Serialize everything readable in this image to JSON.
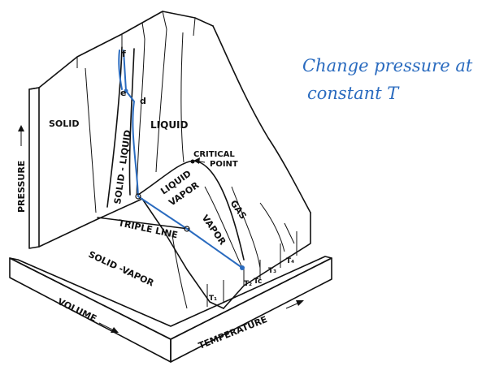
{
  "note": {
    "line1": "Change pressure at",
    "line2": "constant T"
  },
  "regions": {
    "solid": "SOLID",
    "liquid": "LIQUID",
    "solid_liquid": "SOLID - LIQUID",
    "liquid_vapor_1": "LIQUID",
    "liquid_vapor_2": "VAPOR",
    "vapor": "VAPOR",
    "gas": "GAS",
    "solid_vapor": "SOLID -VAPOR",
    "triple_line": "TRIPLE LINE",
    "critical_1": "CRITICAL",
    "critical_2": "POINT"
  },
  "axes": {
    "pressure": "PRESSURE",
    "volume": "VOLUME",
    "temperature": "TEMPERATURE"
  },
  "points": {
    "f": "f",
    "e": "e",
    "d": "d"
  },
  "isotherms": {
    "t1": "T₁",
    "t2": "T₂",
    "tc": "Tc",
    "t3": "T₃",
    "t4": "T₄"
  },
  "colors": {
    "ink": "#111111",
    "annotation": "#2a6bbf",
    "base_fill": "#ffffff"
  }
}
